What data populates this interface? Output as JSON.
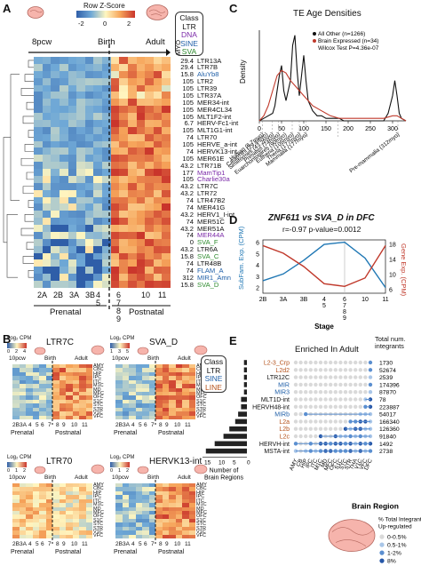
{
  "colors": {
    "LTR": "#111111",
    "DNA": "#7b2aa8",
    "SINE": "#1f5fa8",
    "SVA": "#2e8b2e",
    "LINE": "#b5521b"
  },
  "panelA": {
    "letter": "A",
    "colorbar_title": "Row Z-Score",
    "colorbar_ticks": [
      "-2",
      "0",
      "2"
    ],
    "stage_top_left": "8pcw",
    "stage_top_mid": "Birth",
    "stage_top_right": "Adult",
    "myo_label": "MYO",
    "class_box_title": "Class",
    "class_box": [
      {
        "label": "LTR",
        "class": "LTR"
      },
      {
        "label": "DNA",
        "class": "DNA"
      },
      {
        "label": "SINE",
        "class": "SINE"
      },
      {
        "label": "SVA",
        "class": "SVA"
      }
    ],
    "rows": [
      {
        "myo": "29.4",
        "name": "LTR13A",
        "class": "LTR"
      },
      {
        "myo": "29.4",
        "name": "LTR7B",
        "class": "LTR"
      },
      {
        "myo": "15.8",
        "name": "AluYb8",
        "class": "SINE"
      },
      {
        "myo": "105",
        "name": "LTR2",
        "class": "LTR"
      },
      {
        "myo": "105",
        "name": "LTR39",
        "class": "LTR"
      },
      {
        "myo": "105",
        "name": "LTR37A",
        "class": "LTR"
      },
      {
        "myo": "105",
        "name": "MER34-int",
        "class": "LTR"
      },
      {
        "myo": "105",
        "name": "MER4CL34",
        "class": "LTR"
      },
      {
        "myo": "105",
        "name": "MLT1F2-int",
        "class": "LTR"
      },
      {
        "myo": "6.7",
        "name": "HERV-Fc1-int",
        "class": "LTR"
      },
      {
        "myo": "105",
        "name": "MLT1G1-int",
        "class": "LTR"
      },
      {
        "myo": "74",
        "name": "LTR70",
        "class": "LTR"
      },
      {
        "myo": "105",
        "name": "HERVE_a-int",
        "class": "LTR"
      },
      {
        "myo": "74",
        "name": "HERVK13-int",
        "class": "LTR"
      },
      {
        "myo": "105",
        "name": "MER61E",
        "class": "LTR"
      },
      {
        "myo": "43.2",
        "name": "LTR71B",
        "class": "LTR"
      },
      {
        "myo": "177",
        "name": "MamTip1",
        "class": "DNA"
      },
      {
        "myo": "105",
        "name": "Charlie30a",
        "class": "DNA"
      },
      {
        "myo": "43.2",
        "name": "LTR7C",
        "class": "LTR"
      },
      {
        "myo": "43.2",
        "name": "LTR72",
        "class": "LTR"
      },
      {
        "myo": "74",
        "name": "LTR47B2",
        "class": "LTR"
      },
      {
        "myo": "74",
        "name": "MER41G",
        "class": "LTR"
      },
      {
        "myo": "43.2",
        "name": "HERV1_I-int",
        "class": "LTR"
      },
      {
        "myo": "74",
        "name": "MER51C",
        "class": "LTR"
      },
      {
        "myo": "43.2",
        "name": "MER51A",
        "class": "LTR"
      },
      {
        "myo": "74",
        "name": "MER44A",
        "class": "DNA"
      },
      {
        "myo": "0",
        "name": "SVA_F",
        "class": "SVA"
      },
      {
        "myo": "43.2",
        "name": "LTR6A",
        "class": "LTR"
      },
      {
        "myo": "15.8",
        "name": "SVA_C",
        "class": "SVA"
      },
      {
        "myo": "74",
        "name": "LTR48B",
        "class": "LTR"
      },
      {
        "myo": "74",
        "name": "FLAM_A",
        "class": "SINE"
      },
      {
        "myo": "312",
        "name": "MIR1_Amn",
        "class": "SINE"
      },
      {
        "myo": "15.8",
        "name": "SVA_D",
        "class": "SVA"
      }
    ],
    "stage_labels": [
      "2A",
      "2B",
      "3A",
      "3B",
      "4\n5",
      "6\n7\n8\n9",
      "10",
      "11"
    ],
    "period_labels": [
      "Prenatal",
      "Postnatal"
    ]
  },
  "panelB": {
    "letter": "B",
    "units": "Log₂ CPM",
    "maps": [
      {
        "title": "LTR7C",
        "scale_ticks": [
          "0",
          "2",
          "4"
        ],
        "left": "10pcw",
        "mid": "Birth",
        "right": "Adult",
        "stages": [
          "2B",
          "3A",
          "4",
          "5",
          "6",
          "7",
          "8",
          "9",
          "10",
          "11"
        ],
        "periods": [
          "Prenatal",
          "Postnatal"
        ]
      },
      {
        "title": "SVA_D",
        "scale_ticks": [
          "1",
          "3",
          "5"
        ],
        "left": "10pcw",
        "mid": "Birth",
        "right": "Adult",
        "stages": [
          "2B",
          "3A",
          "4",
          "5",
          "6",
          "7",
          "8",
          "9",
          "10",
          "11"
        ],
        "periods": [
          "Prenatal",
          "Postnatal"
        ]
      },
      {
        "title": "LTR70",
        "scale_ticks": [
          "0",
          "1",
          "2"
        ],
        "left": "10pcw",
        "mid": "Birth",
        "right": "Adult",
        "stages": [
          "2B",
          "3A",
          "4",
          "5",
          "6",
          "7",
          "8",
          "9",
          "10",
          "11"
        ],
        "periods": [
          "Prenatal",
          "Postnatal"
        ]
      },
      {
        "title": "HERVK13-int",
        "scale_ticks": [
          "0",
          "1",
          "2"
        ],
        "left": "10pcw",
        "mid": "Birth",
        "right": "Adult",
        "stages": [
          "2B",
          "3A",
          "4",
          "5",
          "6",
          "7",
          "8",
          "9",
          "10",
          "11"
        ],
        "periods": [
          "Prenatal",
          "Postnatal"
        ]
      }
    ],
    "regions": [
      "AMY",
      "CBC",
      "HIP",
      "IPC",
      "ITC",
      "M1C",
      "MD",
      "MFC",
      "OFC",
      "S1C",
      "STC",
      "STR",
      "V1C",
      "VFC"
    ]
  },
  "chart_data": [
    {
      "type": "line",
      "panel": "C",
      "title": "TE Age Densities",
      "xlabel": "",
      "ylabel": "Density",
      "legend": [
        "All Other (n=1266)",
        "Brain Expressed (n=34)",
        "Wilcox Test P=4.36e-07"
      ],
      "legend_position": "top-right",
      "xticks": [
        "0",
        "50",
        "100",
        "150",
        "200",
        "250",
        "300"
      ],
      "xlim": [
        0,
        330
      ],
      "series": [
        {
          "name": "All Other (n=1266)",
          "color": "#111111",
          "x": [
            0,
            10,
            20,
            30,
            35,
            40,
            45,
            50,
            55,
            60,
            65,
            70,
            75,
            80,
            85,
            90,
            95,
            100,
            105,
            110,
            120,
            130,
            140,
            150,
            160,
            170,
            180,
            190,
            200,
            220,
            240,
            260,
            280,
            290,
            300,
            305,
            310,
            315,
            320,
            330
          ],
          "y": [
            0.0,
            0.001,
            0.002,
            0.003,
            0.006,
            0.012,
            0.018,
            0.022,
            0.012,
            0.008,
            0.012,
            0.016,
            0.03,
            0.034,
            0.02,
            0.01,
            0.018,
            0.026,
            0.016,
            0.008,
            0.004,
            0.002,
            0.002,
            0.001,
            0.001,
            0.001,
            0.001,
            0.0,
            0.0,
            0.0,
            0.0,
            0.0,
            0.0,
            0.003,
            0.01,
            0.016,
            0.01,
            0.003,
            0.001,
            0.0
          ]
        },
        {
          "name": "Brain Expressed (n=34)",
          "color": "#c0392b",
          "x": [
            0,
            10,
            20,
            30,
            40,
            50,
            60,
            70,
            80,
            90,
            100,
            110,
            120,
            140,
            160,
            180,
            200,
            220,
            240,
            260,
            280,
            300,
            310,
            320,
            330
          ],
          "y": [
            0.0,
            0.002,
            0.006,
            0.012,
            0.018,
            0.02,
            0.019,
            0.016,
            0.014,
            0.012,
            0.01,
            0.008,
            0.006,
            0.004,
            0.002,
            0.001,
            0.001,
            0.001,
            0.001,
            0.001,
            0.001,
            0.002,
            0.002,
            0.001,
            0.0
          ]
        }
      ],
      "annotations": [
        "Human (6.7myo)",
        "Catarrhini (29.4myo)",
        "Simiiformes (43.2myo)",
        "Primates (74myo)",
        "Euarchontoglires (90myo)",
        "Eutheria (105myo)",
        "Theria (177myo)",
        "Mammalia (177myo)",
        "Pre-mammalia (312myo)"
      ]
    },
    {
      "type": "line",
      "panel": "D",
      "title": "ZNF611 vs SVA_D in DFC",
      "subtitle": "r=-0.97 p-value=0.0012",
      "xlabel": "Stage",
      "ylabel": "SubFam. Exp. (CPM)",
      "ylabel_right": "Gene Exp. (CPM)",
      "categories": [
        "2B",
        "3A",
        "3B",
        "4",
        "5",
        "6",
        "7",
        "8",
        "9",
        "10",
        "11"
      ],
      "xtick_labels": [
        "2B",
        "3A",
        "3B",
        "4\n5",
        "6\n7\n8\n9",
        "10",
        "11"
      ],
      "yticks_left": [
        "2",
        "3",
        "4",
        "5",
        "6"
      ],
      "yticks_right": [
        "6",
        "10",
        "14",
        "18"
      ],
      "series": [
        {
          "name": "SubFam. Exp. (CPM)",
          "color": "#1f77b4",
          "axis": "left",
          "x": [
            "2B",
            "3A",
            "3B",
            "4 5",
            "6 7 8 9",
            "10",
            "11"
          ],
          "y": [
            2.6,
            3.2,
            4.4,
            5.8,
            6.0,
            4.6,
            2.0
          ]
        },
        {
          "name": "Gene Exp. (CPM)",
          "color": "#c0392b",
          "axis": "right",
          "x": [
            "2B",
            "3A",
            "3B",
            "4 5",
            "6 7 8 9",
            "10",
            "11"
          ],
          "y": [
            17.5,
            15.5,
            12.0,
            7.5,
            6.8,
            9.0,
            17.5
          ]
        }
      ]
    }
  ],
  "panelE": {
    "letter": "E",
    "title": "Enriched In Adult",
    "total_header": "Total num.\nintegrants",
    "class_box": [
      {
        "label": "Class",
        "class": "LTR"
      },
      {
        "label": "LTR",
        "class": "LTR"
      },
      {
        "label": "SINE",
        "class": "SINE"
      },
      {
        "label": "LINE",
        "class": "LINE"
      }
    ],
    "rows": [
      {
        "name": "L2-3_Crp",
        "class": "LINE",
        "total": "1730",
        "brain_regions": 1
      },
      {
        "name": "L2d2",
        "class": "LINE",
        "total": "52674",
        "brain_regions": 1
      },
      {
        "name": "LTR12C",
        "class": "LTR",
        "total": "2539",
        "brain_regions": 1
      },
      {
        "name": "MIR",
        "class": "SINE",
        "total": "174396",
        "brain_regions": 1
      },
      {
        "name": "MIR3",
        "class": "SINE",
        "total": "87870",
        "brain_regions": 1
      },
      {
        "name": "MLT1D-int",
        "class": "LTR",
        "total": "78",
        "brain_regions": 2
      },
      {
        "name": "HERVH48-int",
        "class": "LTR",
        "total": "223887",
        "brain_regions": 2
      },
      {
        "name": "MIRb",
        "class": "SINE",
        "total": "54017",
        "brain_regions": 3
      },
      {
        "name": "L2a",
        "class": "LINE",
        "total": "166340",
        "brain_regions": 4
      },
      {
        "name": "L2b",
        "class": "LINE",
        "total": "126360",
        "brain_regions": 6
      },
      {
        "name": "L2c",
        "class": "LINE",
        "total": "91840",
        "brain_regions": 8
      },
      {
        "name": "HERVH-int",
        "class": "LTR",
        "total": "1492",
        "brain_regions": 11
      },
      {
        "name": "MSTA-int",
        "class": "LTR",
        "total": "2738",
        "brain_regions": 14
      }
    ],
    "regions": [
      "AMY",
      "CB",
      "HIP",
      "IPC",
      "ITC",
      "M1C",
      "MD",
      "MFC",
      "OFC",
      "S1C",
      "STC",
      "STR",
      "THA",
      "V1C",
      "VFC",
      "DFC"
    ],
    "bar_axis_ticks": [
      "15",
      "10",
      "5",
      "0"
    ],
    "bar_axis_label": "Number of\nBrain Regions",
    "brain_region_label": "Brain Region",
    "legend_title": "% Total Integrants\nUp-regulated",
    "legend": [
      {
        "label": "0-0.5%",
        "color": "#d9d9d9"
      },
      {
        "label": "0.5-1%",
        "color": "#a9c6e8"
      },
      {
        "label": "1-2%",
        "color": "#5b8fd0"
      },
      {
        "label": "8%",
        "color": "#2657a8"
      },
      {
        "label": "17%",
        "color": "#0d2b6b"
      }
    ]
  }
}
